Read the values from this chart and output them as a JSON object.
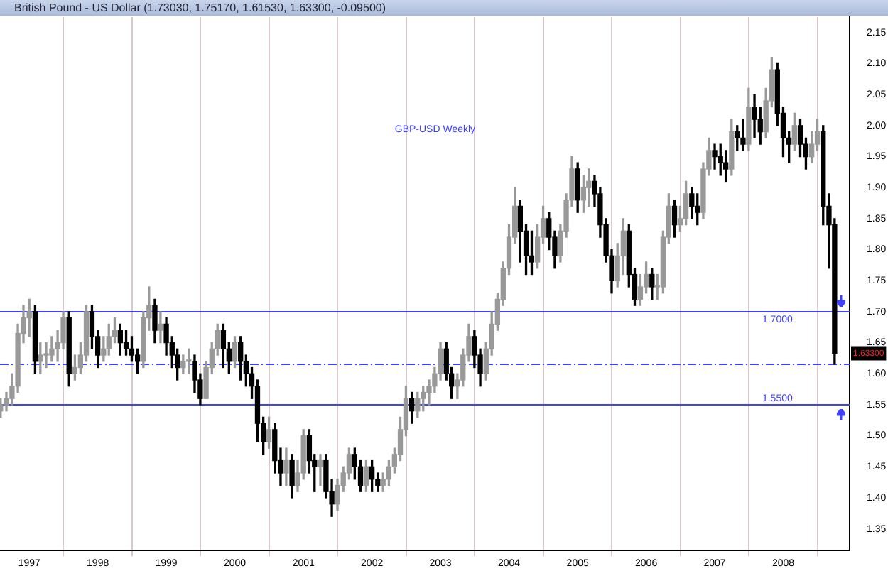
{
  "chart_data": {
    "type": "candlestick",
    "title": "British Pound - US Dollar (1.73030, 1.75170, 1.61530, 1.63300, -0.09500)",
    "subtitle": "GBP-USD Weekly",
    "colors": [
      "#999999",
      "#999999",
      "#999999",
      "#999999",
      "#999999",
      "#999999",
      "#000000",
      "#999999",
      "#999999",
      "#999999",
      "#999999",
      "#999999",
      "#000000",
      "#999999",
      "#999999",
      "#999999",
      "#000000",
      "#000000",
      "#999999",
      "#999999",
      "#999999",
      "#000000",
      "#000000",
      "#000000",
      "#000000",
      "#999999",
      "#999999",
      "#000000",
      "#999999",
      "#000000",
      "#000000",
      "#000000",
      "#999999",
      "#999999",
      "#000000",
      "#000000",
      "#999999",
      "#999999",
      "#999999",
      "#000000",
      "#000000",
      "#999999",
      "#000000",
      "#000000",
      "#000000",
      "#000000",
      "#000000",
      "#999999",
      "#000000",
      "#000000",
      "#999999",
      "#000000",
      "#999999",
      "#999999",
      "#000000",
      "#000000",
      "#999999",
      "#000000",
      "#000000",
      "#999999",
      "#999999",
      "#999999",
      "#000000",
      "#000000",
      "#999999",
      "#000000",
      "#000000",
      "#999999",
      "#999999",
      "#999999",
      "#999999",
      "#999999",
      "#000000",
      "#999999",
      "#999999",
      "#999999",
      "#999999",
      "#999999",
      "#000000",
      "#000000",
      "#999999",
      "#999999",
      "#999999",
      "#000000",
      "#000000",
      "#999999",
      "#999999",
      "#999999",
      "#999999",
      "#999999",
      "#999999",
      "#000000",
      "#000000",
      "#000000",
      "#999999",
      "#999999",
      "#000000",
      "#000000",
      "#999999",
      "#999999",
      "#999999",
      "#000000",
      "#999999",
      "#999999",
      "#000000",
      "#000000",
      "#000000",
      "#000000",
      "#999999",
      "#999999",
      "#000000",
      "#000000",
      "#999999",
      "#999999",
      "#000000",
      "#999999",
      "#999999",
      "#999999",
      "#000000",
      "#999999",
      "#999999",
      "#000000",
      "#000000",
      "#999999",
      "#999999",
      "#000000",
      "#000000",
      "#000000",
      "#999999",
      "#000000",
      "#000000",
      "#999999",
      "#000000",
      "#000000",
      "#999999",
      "#999999",
      "#000000",
      "#000000",
      "#000000",
      "#999999",
      "#000000",
      "#000000",
      "#999999",
      "#999999",
      "#000000",
      "#000000",
      "#000000"
    ],
    "x": [
      "1996-08",
      "1996-09",
      "1996-10",
      "1996-11",
      "1996-12",
      "1997-01",
      "1997-02",
      "1997-03",
      "1997-04",
      "1997-05",
      "1997-06",
      "1997-07",
      "1997-08",
      "1997-09",
      "1997-10",
      "1997-11",
      "1997-12",
      "1998-01",
      "1998-02",
      "1998-03",
      "1998-04",
      "1998-05",
      "1998-06",
      "1998-07",
      "1998-08",
      "1998-09",
      "1998-10",
      "1998-11",
      "1998-12",
      "1999-01",
      "1999-02",
      "1999-03",
      "1999-04",
      "1999-05",
      "1999-06",
      "1999-07",
      "1999-08",
      "1999-09",
      "1999-10",
      "1999-11",
      "1999-12",
      "2000-01",
      "2000-02",
      "2000-03",
      "2000-04",
      "2000-05",
      "2000-06",
      "2000-07",
      "2000-08",
      "2000-09",
      "2000-10",
      "2000-11",
      "2000-12",
      "2001-01",
      "2001-02",
      "2001-03",
      "2001-04",
      "2001-05",
      "2001-06",
      "2001-07",
      "2001-08",
      "2001-09",
      "2001-10",
      "2001-11",
      "2001-12",
      "2002-01",
      "2002-02",
      "2002-03",
      "2002-04",
      "2002-05",
      "2002-06",
      "2002-07",
      "2002-08",
      "2002-09",
      "2002-10",
      "2002-11",
      "2002-12",
      "2003-01",
      "2003-02",
      "2003-03",
      "2003-04",
      "2003-05",
      "2003-06",
      "2003-07",
      "2003-08",
      "2003-09",
      "2003-10",
      "2003-11",
      "2003-12",
      "2004-01",
      "2004-02",
      "2004-03",
      "2004-04",
      "2004-05",
      "2004-06",
      "2004-07",
      "2004-08",
      "2004-09",
      "2004-10",
      "2004-11",
      "2004-12",
      "2005-01",
      "2005-02",
      "2005-03",
      "2005-04",
      "2005-05",
      "2005-06",
      "2005-07",
      "2005-08",
      "2005-09",
      "2005-10",
      "2005-11",
      "2005-12",
      "2006-01",
      "2006-02",
      "2006-03",
      "2006-04",
      "2006-05",
      "2006-06",
      "2006-07",
      "2006-08",
      "2006-09",
      "2006-10",
      "2006-11",
      "2006-12",
      "2007-01",
      "2007-02",
      "2007-03",
      "2007-04",
      "2007-05",
      "2007-06",
      "2007-07",
      "2007-08",
      "2007-09",
      "2007-10",
      "2007-11",
      "2007-12",
      "2008-01",
      "2008-02",
      "2008-03",
      "2008-04",
      "2008-05",
      "2008-06",
      "2008-07",
      "2008-08",
      "2008-09",
      "2008-10"
    ],
    "ohlc": [
      [
        1.54,
        1.56,
        1.53,
        1.55
      ],
      [
        1.55,
        1.57,
        1.54,
        1.56
      ],
      [
        1.56,
        1.6,
        1.55,
        1.58
      ],
      [
        1.58,
        1.68,
        1.57,
        1.665
      ],
      [
        1.665,
        1.71,
        1.65,
        1.69
      ],
      [
        1.69,
        1.72,
        1.66,
        1.7
      ],
      [
        1.7,
        1.71,
        1.6,
        1.62
      ],
      [
        1.62,
        1.65,
        1.6,
        1.63
      ],
      [
        1.63,
        1.65,
        1.61,
        1.63
      ],
      [
        1.63,
        1.66,
        1.62,
        1.64
      ],
      [
        1.64,
        1.67,
        1.62,
        1.65
      ],
      [
        1.65,
        1.7,
        1.64,
        1.69
      ],
      [
        1.69,
        1.7,
        1.58,
        1.6
      ],
      [
        1.6,
        1.63,
        1.59,
        1.61
      ],
      [
        1.61,
        1.65,
        1.6,
        1.63
      ],
      [
        1.63,
        1.71,
        1.62,
        1.7
      ],
      [
        1.7,
        1.71,
        1.64,
        1.66
      ],
      [
        1.66,
        1.67,
        1.61,
        1.63
      ],
      [
        1.63,
        1.66,
        1.62,
        1.64
      ],
      [
        1.64,
        1.68,
        1.63,
        1.66
      ],
      [
        1.66,
        1.69,
        1.65,
        1.67
      ],
      [
        1.67,
        1.68,
        1.63,
        1.65
      ],
      [
        1.65,
        1.67,
        1.63,
        1.64
      ],
      [
        1.64,
        1.66,
        1.62,
        1.63
      ],
      [
        1.63,
        1.64,
        1.6,
        1.62
      ],
      [
        1.62,
        1.7,
        1.61,
        1.69
      ],
      [
        1.69,
        1.74,
        1.67,
        1.71
      ],
      [
        1.71,
        1.72,
        1.65,
        1.67
      ],
      [
        1.67,
        1.7,
        1.65,
        1.68
      ],
      [
        1.68,
        1.69,
        1.63,
        1.65
      ],
      [
        1.65,
        1.66,
        1.61,
        1.63
      ],
      [
        1.63,
        1.64,
        1.59,
        1.61
      ],
      [
        1.61,
        1.63,
        1.6,
        1.62
      ],
      [
        1.62,
        1.64,
        1.6,
        1.62
      ],
      [
        1.62,
        1.63,
        1.57,
        1.59
      ],
      [
        1.59,
        1.6,
        1.55,
        1.56
      ],
      [
        1.56,
        1.62,
        1.56,
        1.61
      ],
      [
        1.61,
        1.65,
        1.6,
        1.64
      ],
      [
        1.64,
        1.68,
        1.63,
        1.67
      ],
      [
        1.67,
        1.68,
        1.61,
        1.64
      ],
      [
        1.64,
        1.65,
        1.6,
        1.62
      ],
      [
        1.62,
        1.66,
        1.61,
        1.65
      ],
      [
        1.65,
        1.66,
        1.59,
        1.62
      ],
      [
        1.62,
        1.63,
        1.58,
        1.6
      ],
      [
        1.6,
        1.61,
        1.56,
        1.58
      ],
      [
        1.58,
        1.59,
        1.49,
        1.52
      ],
      [
        1.52,
        1.53,
        1.47,
        1.49
      ],
      [
        1.49,
        1.53,
        1.48,
        1.51
      ],
      [
        1.51,
        1.52,
        1.44,
        1.46
      ],
      [
        1.46,
        1.48,
        1.42,
        1.44
      ],
      [
        1.44,
        1.48,
        1.42,
        1.46
      ],
      [
        1.46,
        1.47,
        1.4,
        1.42
      ],
      [
        1.42,
        1.46,
        1.41,
        1.44
      ],
      [
        1.44,
        1.51,
        1.43,
        1.5
      ],
      [
        1.5,
        1.51,
        1.44,
        1.46
      ],
      [
        1.46,
        1.47,
        1.41,
        1.45
      ],
      [
        1.45,
        1.47,
        1.42,
        1.46
      ],
      [
        1.46,
        1.47,
        1.4,
        1.41
      ],
      [
        1.41,
        1.43,
        1.37,
        1.39
      ],
      [
        1.39,
        1.43,
        1.38,
        1.42
      ],
      [
        1.42,
        1.45,
        1.41,
        1.44
      ],
      [
        1.44,
        1.48,
        1.43,
        1.47
      ],
      [
        1.47,
        1.48,
        1.43,
        1.45
      ],
      [
        1.45,
        1.46,
        1.41,
        1.42
      ],
      [
        1.42,
        1.46,
        1.41,
        1.45
      ],
      [
        1.45,
        1.46,
        1.41,
        1.43
      ],
      [
        1.43,
        1.44,
        1.41,
        1.42
      ],
      [
        1.42,
        1.44,
        1.41,
        1.43
      ],
      [
        1.43,
        1.46,
        1.42,
        1.45
      ],
      [
        1.45,
        1.48,
        1.44,
        1.47
      ],
      [
        1.47,
        1.53,
        1.46,
        1.51
      ],
      [
        1.51,
        1.58,
        1.5,
        1.56
      ],
      [
        1.56,
        1.57,
        1.52,
        1.54
      ],
      [
        1.54,
        1.57,
        1.53,
        1.56
      ],
      [
        1.56,
        1.58,
        1.54,
        1.57
      ],
      [
        1.57,
        1.59,
        1.55,
        1.58
      ],
      [
        1.58,
        1.61,
        1.57,
        1.6
      ],
      [
        1.6,
        1.65,
        1.59,
        1.64
      ],
      [
        1.64,
        1.65,
        1.59,
        1.6
      ],
      [
        1.6,
        1.61,
        1.56,
        1.58
      ],
      [
        1.58,
        1.6,
        1.56,
        1.59
      ],
      [
        1.59,
        1.64,
        1.58,
        1.63
      ],
      [
        1.63,
        1.68,
        1.62,
        1.66
      ],
      [
        1.66,
        1.67,
        1.61,
        1.63
      ],
      [
        1.63,
        1.64,
        1.58,
        1.6
      ],
      [
        1.6,
        1.65,
        1.59,
        1.64
      ],
      [
        1.64,
        1.7,
        1.63,
        1.68
      ],
      [
        1.68,
        1.73,
        1.67,
        1.72
      ],
      [
        1.72,
        1.78,
        1.71,
        1.77
      ],
      [
        1.77,
        1.84,
        1.76,
        1.82
      ],
      [
        1.82,
        1.9,
        1.81,
        1.87
      ],
      [
        1.87,
        1.88,
        1.78,
        1.83
      ],
      [
        1.83,
        1.84,
        1.76,
        1.79
      ],
      [
        1.79,
        1.83,
        1.76,
        1.78
      ],
      [
        1.78,
        1.84,
        1.77,
        1.82
      ],
      [
        1.82,
        1.87,
        1.81,
        1.85
      ],
      [
        1.85,
        1.86,
        1.8,
        1.82
      ],
      [
        1.82,
        1.83,
        1.77,
        1.79
      ],
      [
        1.79,
        1.84,
        1.78,
        1.83
      ],
      [
        1.83,
        1.89,
        1.82,
        1.88
      ],
      [
        1.88,
        1.95,
        1.87,
        1.93
      ],
      [
        1.93,
        1.94,
        1.86,
        1.88
      ],
      [
        1.88,
        1.92,
        1.86,
        1.9
      ],
      [
        1.9,
        1.93,
        1.87,
        1.91
      ],
      [
        1.91,
        1.92,
        1.87,
        1.89
      ],
      [
        1.89,
        1.9,
        1.82,
        1.84
      ],
      [
        1.84,
        1.85,
        1.78,
        1.79
      ],
      [
        1.79,
        1.8,
        1.73,
        1.75
      ],
      [
        1.75,
        1.81,
        1.74,
        1.79
      ],
      [
        1.79,
        1.85,
        1.76,
        1.83
      ],
      [
        1.83,
        1.84,
        1.74,
        1.76
      ],
      [
        1.76,
        1.77,
        1.71,
        1.72
      ],
      [
        1.72,
        1.76,
        1.71,
        1.74
      ],
      [
        1.74,
        1.78,
        1.73,
        1.76
      ],
      [
        1.76,
        1.77,
        1.72,
        1.74
      ],
      [
        1.74,
        1.76,
        1.72,
        1.74
      ],
      [
        1.74,
        1.83,
        1.73,
        1.82
      ],
      [
        1.82,
        1.89,
        1.81,
        1.87
      ],
      [
        1.87,
        1.88,
        1.82,
        1.84
      ],
      [
        1.84,
        1.87,
        1.83,
        1.85
      ],
      [
        1.85,
        1.91,
        1.84,
        1.89
      ],
      [
        1.89,
        1.9,
        1.85,
        1.87
      ],
      [
        1.87,
        1.89,
        1.84,
        1.86
      ],
      [
        1.86,
        1.94,
        1.85,
        1.93
      ],
      [
        1.93,
        1.98,
        1.92,
        1.96
      ],
      [
        1.96,
        1.97,
        1.93,
        1.95
      ],
      [
        1.95,
        1.97,
        1.92,
        1.94
      ],
      [
        1.94,
        1.96,
        1.91,
        1.93
      ],
      [
        1.93,
        2.01,
        1.92,
        1.99
      ],
      [
        1.99,
        2.0,
        1.96,
        1.98
      ],
      [
        1.98,
        2.01,
        1.96,
        1.97
      ],
      [
        1.97,
        2.06,
        1.96,
        2.03
      ],
      [
        2.03,
        2.05,
        1.98,
        2.01
      ],
      [
        2.01,
        2.03,
        1.97,
        1.99
      ],
      [
        1.99,
        2.06,
        1.98,
        2.04
      ],
      [
        2.04,
        2.11,
        2.03,
        2.09
      ],
      [
        2.09,
        2.1,
        2.0,
        2.02
      ],
      [
        2.02,
        2.03,
        1.95,
        1.98
      ],
      [
        1.98,
        1.99,
        1.94,
        1.97
      ],
      [
        1.97,
        2.02,
        1.96,
        2.0
      ],
      [
        2.0,
        2.01,
        1.95,
        1.97
      ],
      [
        1.97,
        1.98,
        1.93,
        1.95
      ],
      [
        1.95,
        1.99,
        1.94,
        1.97
      ],
      [
        1.97,
        2.01,
        1.96,
        1.99
      ],
      [
        1.99,
        2.0,
        1.84,
        1.87
      ],
      [
        1.87,
        1.89,
        1.77,
        1.84
      ],
      [
        1.84,
        1.85,
        1.6153,
        1.633
      ]
    ],
    "xlim": [
      "1996-07-29",
      "2008-12-20"
    ],
    "xticks": [
      "1997",
      "1998",
      "1999",
      "2000",
      "2001",
      "2002",
      "2003",
      "2004",
      "2005",
      "2006",
      "2007",
      "2008"
    ],
    "ylim": [
      1.315,
      2.175
    ],
    "yticks": [
      1.35,
      {
        "value": 1.4,
        "label": "1.40"
      },
      1.45,
      {
        "value": 1.5,
        "label": "1.50"
      },
      1.55,
      {
        "value": 1.6,
        "label": "1.60"
      },
      1.65,
      {
        "value": 1.7,
        "label": "1.70"
      },
      1.75,
      {
        "value": 1.8,
        "label": "1.80"
      },
      1.85,
      {
        "value": 1.9,
        "label": "1.90"
      },
      1.95,
      {
        "value": 2.0,
        "label": "2.00"
      },
      2.05,
      {
        "value": 2.1,
        "label": "2.10"
      },
      2.15
    ],
    "grid": "x",
    "legend": false,
    "ref_lines": [
      {
        "axis": "y",
        "value": 1.7,
        "label": "1.7000",
        "color": "#4040ff",
        "line_style": "solid"
      },
      {
        "axis": "y",
        "value": 1.55,
        "label": "1.5500",
        "color": "#4040ff",
        "line_style": "solid"
      },
      {
        "axis": "y",
        "value": 1.6153,
        "color": "#4040ff",
        "line_style": "dashed"
      }
    ],
    "annotations": [
      {
        "text": "1.63300",
        "x": "2008-10",
        "y": 1.633
      }
    ]
  }
}
